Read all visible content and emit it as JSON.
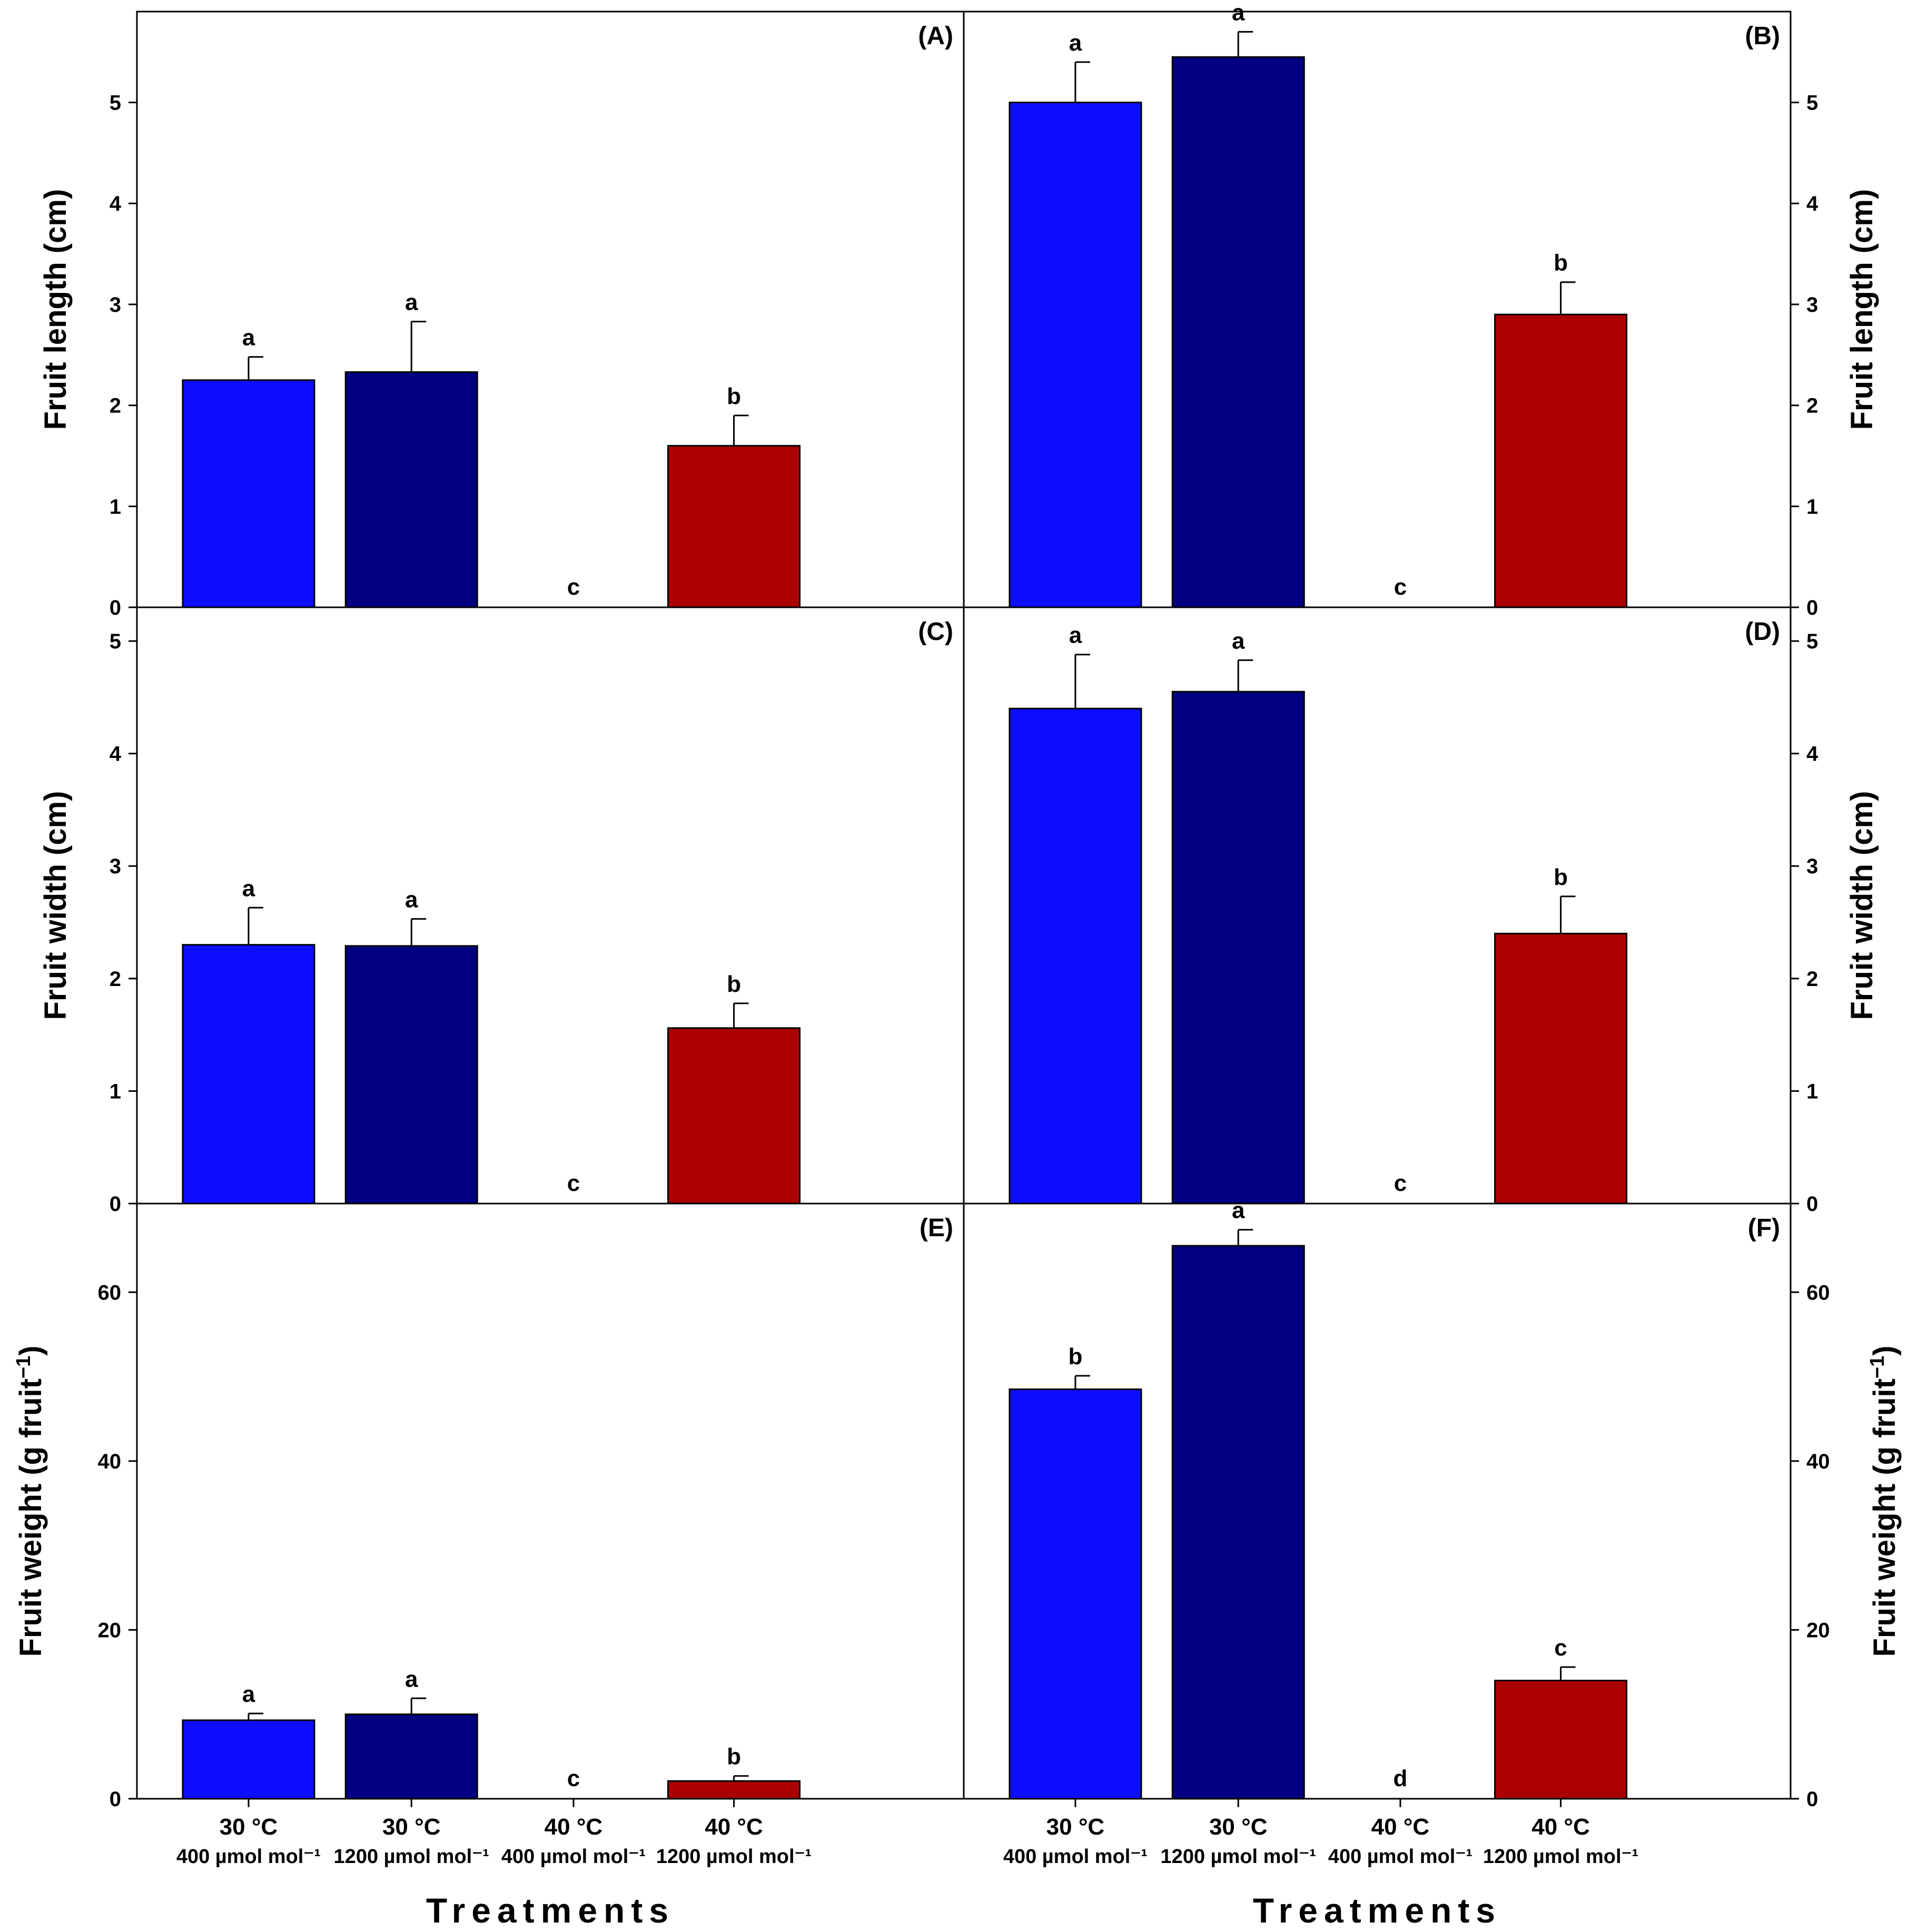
{
  "chart_data": [
    {
      "panel": "(A)",
      "type": "bar",
      "ylabel": "Fruit length (cm)",
      "ylim": [
        0,
        5.9
      ],
      "yticks": [
        "0",
        "1",
        "2",
        "3",
        "4",
        "5"
      ],
      "ytick_values": [
        0,
        1,
        2,
        3,
        4,
        5
      ],
      "yaxis_side": "left",
      "bars": [
        {
          "value": 2.25,
          "error": 0.23,
          "label": "a",
          "color": "#0e0eff"
        },
        {
          "value": 2.33,
          "error": 0.5,
          "label": "a",
          "color": "#000080"
        },
        {
          "value": 0,
          "error": 0,
          "label": "c",
          "color": "#0e0eff"
        },
        {
          "value": 1.6,
          "error": 0.3,
          "label": "b",
          "color": "#aa0000"
        }
      ]
    },
    {
      "panel": "(B)",
      "type": "bar",
      "ylabel": "Fruit length (cm)",
      "ylim": [
        0,
        5.9
      ],
      "yticks": [
        "0",
        "1",
        "2",
        "3",
        "4",
        "5"
      ],
      "ytick_values": [
        0,
        1,
        2,
        3,
        4,
        5
      ],
      "yaxis_side": "right",
      "bars": [
        {
          "value": 5.0,
          "error": 0.4,
          "label": "a",
          "color": "#0e0eff"
        },
        {
          "value": 5.45,
          "error": 0.25,
          "label": "a",
          "color": "#000080"
        },
        {
          "value": 0,
          "error": 0,
          "label": "c",
          "color": "#0e0eff"
        },
        {
          "value": 2.9,
          "error": 0.32,
          "label": "b",
          "color": "#aa0000"
        }
      ]
    },
    {
      "panel": "(C)",
      "type": "bar",
      "ylabel": "Fruit width (cm)",
      "ylim": [
        0,
        5.3
      ],
      "yticks": [
        "0",
        "1",
        "2",
        "3",
        "4",
        "5"
      ],
      "ytick_values": [
        0,
        1,
        2,
        3,
        4,
        5
      ],
      "yaxis_side": "left",
      "bars": [
        {
          "value": 2.3,
          "error": 0.33,
          "label": "a",
          "color": "#0e0eff"
        },
        {
          "value": 2.29,
          "error": 0.24,
          "label": "a",
          "color": "#000080"
        },
        {
          "value": 0,
          "error": 0,
          "label": "c",
          "color": "#0e0eff"
        },
        {
          "value": 1.56,
          "error": 0.22,
          "label": "b",
          "color": "#aa0000"
        }
      ]
    },
    {
      "panel": "(D)",
      "type": "bar",
      "ylabel": "Fruit width (cm)",
      "ylim": [
        0,
        5.3
      ],
      "yticks": [
        "0",
        "1",
        "2",
        "3",
        "4",
        "5"
      ],
      "ytick_values": [
        0,
        1,
        2,
        3,
        4,
        5
      ],
      "yaxis_side": "right",
      "bars": [
        {
          "value": 4.4,
          "error": 0.48,
          "label": "a",
          "color": "#0e0eff"
        },
        {
          "value": 4.55,
          "error": 0.28,
          "label": "a",
          "color": "#000080"
        },
        {
          "value": 0,
          "error": 0,
          "label": "c",
          "color": "#0e0eff"
        },
        {
          "value": 2.4,
          "error": 0.33,
          "label": "b",
          "color": "#aa0000"
        }
      ]
    },
    {
      "panel": "(E)",
      "type": "bar",
      "ylabel": "Fruit weight (g fruit",
      "ylabel_sup": "−1",
      "ylabel_end": ")",
      "ylim": [
        0,
        70.5
      ],
      "yticks": [
        "0",
        "20",
        "40",
        "60"
      ],
      "ytick_values": [
        0,
        20,
        40,
        60
      ],
      "yaxis_side": "left",
      "bars": [
        {
          "value": 9.3,
          "error": 0.8,
          "label": "a",
          "color": "#0e0eff"
        },
        {
          "value": 10.0,
          "error": 1.9,
          "label": "a",
          "color": "#000080"
        },
        {
          "value": 0,
          "error": 0,
          "label": "c",
          "color": "#0e0eff"
        },
        {
          "value": 2.1,
          "error": 0.6,
          "label": "b",
          "color": "#aa0000"
        }
      ]
    },
    {
      "panel": "(F)",
      "type": "bar",
      "ylabel": "Fruit weight (g fruit",
      "ylabel_sup": "−1",
      "ylabel_end": ")",
      "ylim": [
        0,
        70.5
      ],
      "yticks": [
        "0",
        "20",
        "40",
        "60"
      ],
      "ytick_values": [
        0,
        20,
        40,
        60
      ],
      "yaxis_side": "right",
      "bars": [
        {
          "value": 48.5,
          "error": 1.6,
          "label": "b",
          "color": "#0e0eff"
        },
        {
          "value": 65.5,
          "error": 1.9,
          "label": "a",
          "color": "#000080"
        },
        {
          "value": 0,
          "error": 0,
          "label": "d",
          "color": "#0e0eff"
        },
        {
          "value": 14.0,
          "error": 1.6,
          "label": "c",
          "color": "#aa0000"
        }
      ]
    }
  ],
  "categories": [
    {
      "line1": "30 °C",
      "line2": "400 µmol mol⁻¹"
    },
    {
      "line1": "30 °C",
      "line2": "1200 µmol mol⁻¹"
    },
    {
      "line1": "40 °C",
      "line2": "400 µmol mol⁻¹"
    },
    {
      "line1": "40 °C",
      "line2": "1200 µmol mol⁻¹"
    }
  ],
  "xlabel": "Treatments"
}
